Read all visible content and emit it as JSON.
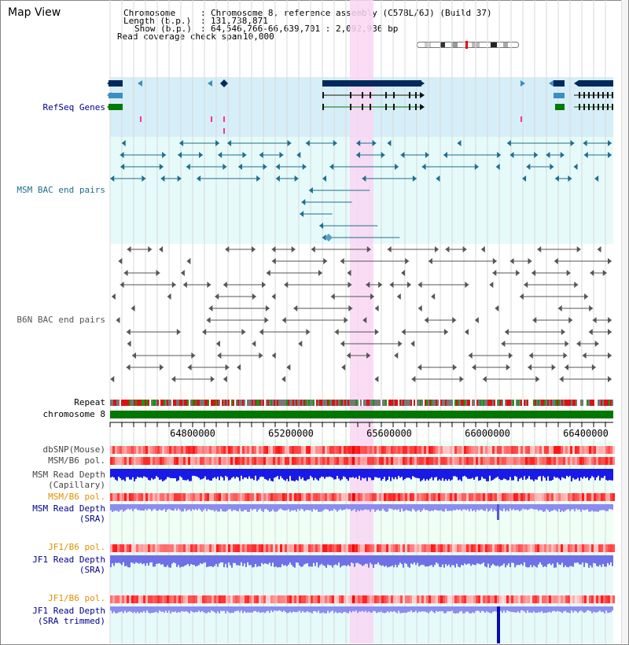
{
  "page": {
    "title": "Map View"
  },
  "info": {
    "chromosome_key": "Chromosome",
    "chromosome_val": "Chromosome 8, reference assembly (C57BL/6J) (Build 37)",
    "length_key": "Length (b.p.)",
    "length_val": "131,738,871",
    "show_key": "Show (b.p.)",
    "show_val": "64,546,766-66,639,701 : 2,092,936 bp",
    "coverage_key": "Read coverage check span",
    "coverage_val": "10,000"
  },
  "tracks": {
    "refseq": "RefSeq Genes",
    "msm_bac": "MSM BAC end pairs",
    "b6n_bac": "B6N BAC end pairs",
    "repeat": "Repeat",
    "chromosome": "chromosome 8",
    "dbsnp": "dbSNP(Mouse)",
    "msm_b6_pol_1": "MSM/B6 pol.",
    "msm_read_depth_cap_1": "MSM Read Depth",
    "msm_read_depth_cap_2": "(Capillary)",
    "msm_b6_pol_2": "MSM/B6 pol.",
    "msm_read_depth_sra_1": "MSM Read Depth",
    "msm_read_depth_sra_2": "(SRA)",
    "jf1_b6_pol_1": "JF1/B6 pol.",
    "jf1_read_depth_sra_1": "JF1 Read Depth",
    "jf1_read_depth_sra_2": "(SRA)",
    "jf1_b6_pol_2": "JF1/B6 pol.",
    "jf1_read_depth_trim_1": "JF1 Read Depth",
    "jf1_read_depth_trim_2": "(SRA trimmed)"
  },
  "ruler": {
    "ticks": [
      "64800000",
      "65200000",
      "65600000",
      "66000000",
      "66400000"
    ]
  },
  "colors": {
    "refseq_bg": "#d6eef8",
    "msm_bac_bg": "#e6fafa",
    "highlight": "#f9d6f3",
    "chromosome": "#007700",
    "gene_dark": "#002a5c",
    "gene_mid": "#3a8fbf",
    "gene_green": "#007a00",
    "msm_bac": "#1f6e8c",
    "b6n_bac": "#555555",
    "depth_blue": "#1a1ae6",
    "depth_light": "#8c8cf0"
  }
}
